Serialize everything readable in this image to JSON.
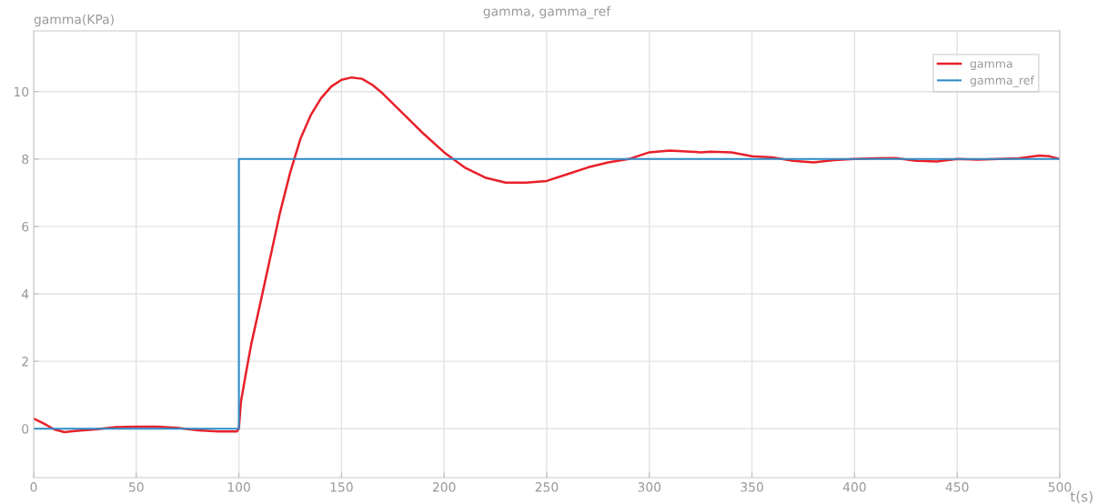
{
  "chart_data": {
    "type": "line",
    "title": "gamma, gamma_ref",
    "xlabel": "t(s)",
    "ylabel": "gamma(KPa)",
    "xlim": [
      0,
      500
    ],
    "ylim": [
      -1.45,
      11.8
    ],
    "xticks": [
      0,
      50,
      100,
      150,
      200,
      250,
      300,
      350,
      400,
      450,
      500
    ],
    "yticks": [
      0,
      2,
      4,
      6,
      8,
      10
    ],
    "grid": true,
    "legend": "top right",
    "series": [
      {
        "name": "gamma",
        "color": "#e8202a",
        "x": [
          0,
          5,
          10,
          15,
          20,
          30,
          40,
          50,
          60,
          70,
          80,
          90,
          99,
          100,
          101,
          103,
          106,
          110,
          115,
          120,
          125,
          130,
          135,
          140,
          145,
          150,
          155,
          160,
          165,
          170,
          180,
          190,
          200,
          210,
          220,
          230,
          240,
          250,
          260,
          270,
          280,
          290,
          295,
          300,
          310,
          320,
          325,
          330,
          340,
          350,
          360,
          370,
          380,
          390,
          400,
          410,
          420,
          430,
          440,
          450,
          460,
          470,
          480,
          490,
          495,
          500
        ],
        "values": [
          0.3,
          0.15,
          -0.02,
          -0.1,
          -0.07,
          -0.02,
          0.05,
          0.06,
          0.06,
          0.03,
          -0.05,
          -0.08,
          -0.08,
          0,
          0.8,
          1.5,
          2.5,
          3.6,
          5.0,
          6.4,
          7.6,
          8.6,
          9.3,
          9.8,
          10.15,
          10.35,
          10.42,
          10.38,
          10.2,
          9.95,
          9.35,
          8.75,
          8.2,
          7.75,
          7.45,
          7.3,
          7.3,
          7.35,
          7.55,
          7.75,
          7.9,
          8.0,
          8.1,
          8.2,
          8.25,
          8.22,
          8.2,
          8.22,
          8.2,
          8.08,
          8.05,
          7.95,
          7.9,
          7.97,
          8.0,
          8.02,
          8.03,
          7.95,
          7.93,
          8.0,
          7.98,
          8.0,
          8.02,
          8.1,
          8.08,
          8.0
        ]
      },
      {
        "name": "gamma_ref",
        "color": "#2f8cc8",
        "type": "step",
        "x": [
          0,
          100,
          500
        ],
        "values": [
          0,
          8,
          8
        ]
      }
    ]
  }
}
